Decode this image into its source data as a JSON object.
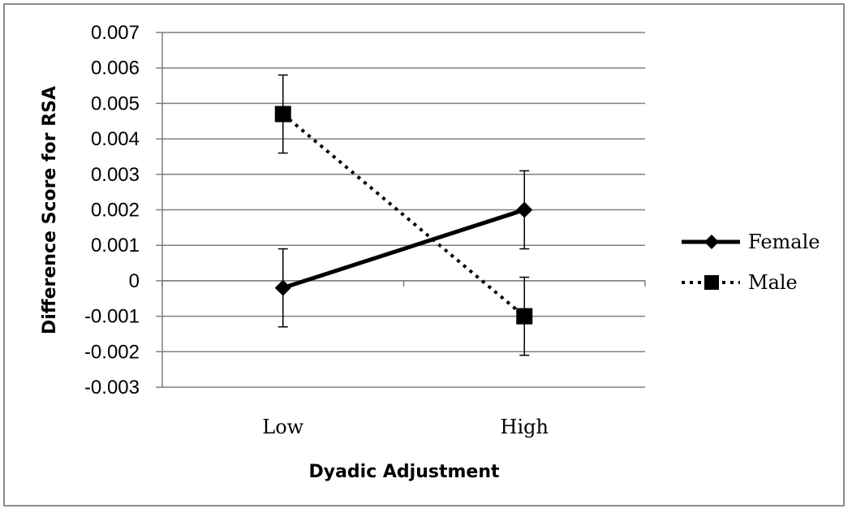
{
  "chart_data": {
    "type": "line",
    "title": "",
    "xlabel": "Dyadic Adjustment",
    "ylabel": "Difference Score for RSA",
    "categories": [
      "Low",
      "High"
    ],
    "ylim": [
      -0.003,
      0.007
    ],
    "yticks": [
      0.007,
      0.006,
      0.005,
      0.004,
      0.003,
      0.002,
      0.001,
      0,
      -0.001,
      -0.002,
      -0.003
    ],
    "ytick_labels": [
      "0.007",
      "0.006",
      "0.005",
      "0.004",
      "0.003",
      "0.002",
      "0.001",
      "0",
      "-0.001",
      "-0.002",
      "-0.003"
    ],
    "grid": true,
    "legend_position": "right",
    "series": [
      {
        "name": "Female",
        "values": [
          -0.0002,
          0.002
        ],
        "error": [
          0.0011,
          0.0011
        ],
        "marker": "diamond",
        "line_style": "solid",
        "color": "#000000"
      },
      {
        "name": "Male",
        "values": [
          0.0047,
          -0.001
        ],
        "error": [
          0.0011,
          0.0011
        ],
        "marker": "square",
        "line_style": "dotted",
        "color": "#000000"
      }
    ]
  }
}
